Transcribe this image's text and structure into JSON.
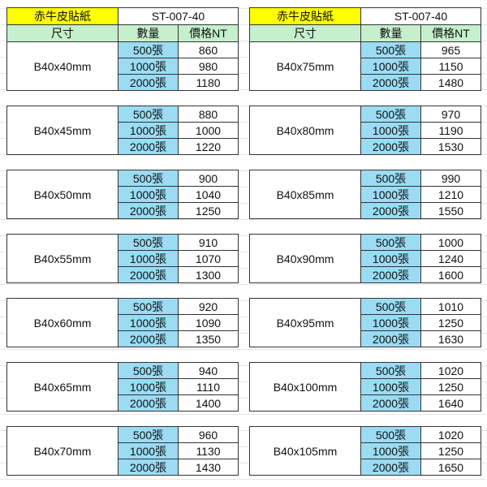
{
  "colors": {
    "title": "#ffff00",
    "header": "#c5efcd",
    "qty": "#9bdcf3"
  },
  "tables": [
    {
      "title": "赤牛皮貼紙",
      "code": "ST-007-40",
      "headers": {
        "size": "尺寸",
        "qty": "數量",
        "price": "價格NT"
      },
      "groups": [
        {
          "size": "B40x40mm",
          "rows": [
            {
              "qty": "500張",
              "price": "860"
            },
            {
              "qty": "1000張",
              "price": "980"
            },
            {
              "qty": "2000張",
              "price": "1180"
            }
          ]
        },
        {
          "size": "B40x45mm",
          "rows": [
            {
              "qty": "500張",
              "price": "880"
            },
            {
              "qty": "1000張",
              "price": "1000"
            },
            {
              "qty": "2000張",
              "price": "1220"
            }
          ]
        },
        {
          "size": "B40x50mm",
          "rows": [
            {
              "qty": "500張",
              "price": "900"
            },
            {
              "qty": "1000張",
              "price": "1040"
            },
            {
              "qty": "2000張",
              "price": "1250"
            }
          ]
        },
        {
          "size": "B40x55mm",
          "rows": [
            {
              "qty": "500張",
              "price": "910"
            },
            {
              "qty": "1000張",
              "price": "1070"
            },
            {
              "qty": "2000張",
              "price": "1300"
            }
          ]
        },
        {
          "size": "B40x60mm",
          "rows": [
            {
              "qty": "500張",
              "price": "920"
            },
            {
              "qty": "1000張",
              "price": "1090"
            },
            {
              "qty": "2000張",
              "price": "1350"
            }
          ]
        },
        {
          "size": "B40x65mm",
          "rows": [
            {
              "qty": "500張",
              "price": "940"
            },
            {
              "qty": "1000張",
              "price": "1110"
            },
            {
              "qty": "2000張",
              "price": "1400"
            }
          ]
        },
        {
          "size": "B40x70mm",
          "rows": [
            {
              "qty": "500張",
              "price": "960"
            },
            {
              "qty": "1000張",
              "price": "1130"
            },
            {
              "qty": "2000張",
              "price": "1430"
            }
          ]
        }
      ]
    },
    {
      "title": "赤牛皮貼紙",
      "code": "ST-007-40",
      "headers": {
        "size": "尺寸",
        "qty": "數量",
        "price": "價格NT"
      },
      "groups": [
        {
          "size": "B40x75mm",
          "rows": [
            {
              "qty": "500張",
              "price": "965"
            },
            {
              "qty": "1000張",
              "price": "1150"
            },
            {
              "qty": "2000張",
              "price": "1480"
            }
          ]
        },
        {
          "size": "B40x80mm",
          "rows": [
            {
              "qty": "500張",
              "price": "970"
            },
            {
              "qty": "1000張",
              "price": "1190"
            },
            {
              "qty": "2000張",
              "price": "1530"
            }
          ]
        },
        {
          "size": "B40x85mm",
          "rows": [
            {
              "qty": "500張",
              "price": "990"
            },
            {
              "qty": "1000張",
              "price": "1210"
            },
            {
              "qty": "2000張",
              "price": "1550"
            }
          ]
        },
        {
          "size": "B40x90mm",
          "rows": [
            {
              "qty": "500張",
              "price": "1000"
            },
            {
              "qty": "1000張",
              "price": "1240"
            },
            {
              "qty": "2000張",
              "price": "1600"
            }
          ]
        },
        {
          "size": "B40x95mm",
          "rows": [
            {
              "qty": "500張",
              "price": "1010"
            },
            {
              "qty": "1000張",
              "price": "1250"
            },
            {
              "qty": "2000張",
              "price": "1630"
            }
          ]
        },
        {
          "size": "B40x100mm",
          "rows": [
            {
              "qty": "500張",
              "price": "1020"
            },
            {
              "qty": "1000張",
              "price": "1250"
            },
            {
              "qty": "2000張",
              "price": "1640"
            }
          ]
        },
        {
          "size": "B40x105mm",
          "rows": [
            {
              "qty": "500張",
              "price": "1020"
            },
            {
              "qty": "1000張",
              "price": "1250"
            },
            {
              "qty": "2000張",
              "price": "1650"
            }
          ]
        }
      ]
    }
  ]
}
